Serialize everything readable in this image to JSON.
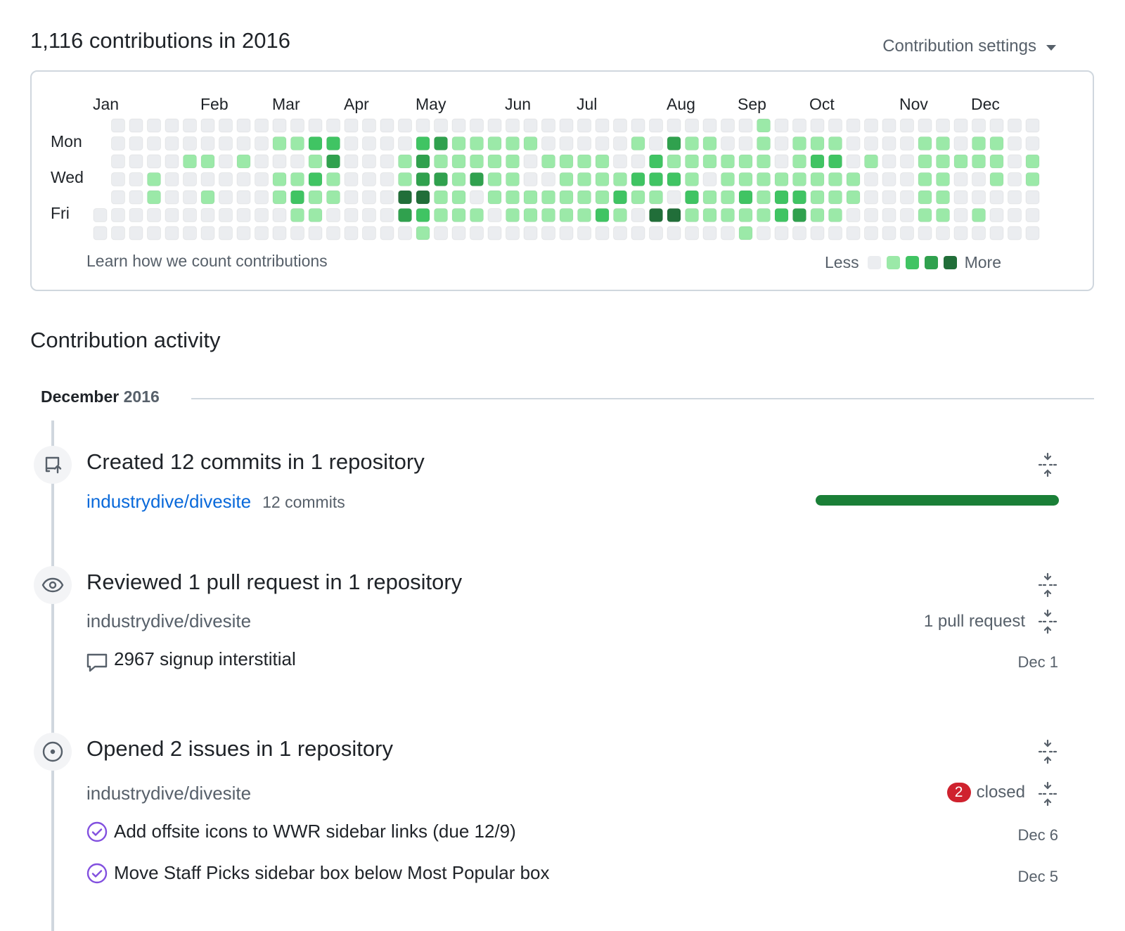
{
  "header": {
    "contributions_title": "1,116 contributions in 2016",
    "settings_label": "Contribution settings"
  },
  "calendar": {
    "months": [
      "Jan",
      "Feb",
      "Mar",
      "Apr",
      "May",
      "Jun",
      "Jul",
      "Aug",
      "Sep",
      "Oct",
      "Nov",
      "Dec"
    ],
    "days": [
      "Mon",
      "Wed",
      "Fri"
    ],
    "learn_link": "Learn how we count contributions",
    "legend_less": "Less",
    "legend_more": "More",
    "levels": [
      "#ebedf0",
      "#9be9a8",
      "#40c463",
      "#30a14e",
      "#216e39"
    ],
    "weeks": [
      [
        -1,
        -1,
        -1,
        -1,
        -1,
        0,
        0
      ],
      [
        0,
        0,
        0,
        0,
        0,
        0,
        0
      ],
      [
        0,
        0,
        0,
        0,
        0,
        0,
        0
      ],
      [
        0,
        0,
        0,
        1,
        1,
        0,
        0
      ],
      [
        0,
        0,
        0,
        0,
        0,
        0,
        0
      ],
      [
        0,
        0,
        1,
        0,
        0,
        0,
        0
      ],
      [
        0,
        0,
        1,
        0,
        1,
        0,
        0
      ],
      [
        0,
        0,
        0,
        0,
        0,
        0,
        0
      ],
      [
        0,
        0,
        1,
        0,
        0,
        0,
        0
      ],
      [
        0,
        0,
        0,
        0,
        0,
        0,
        0
      ],
      [
        0,
        1,
        0,
        1,
        1,
        0,
        0
      ],
      [
        0,
        1,
        0,
        1,
        2,
        1,
        0
      ],
      [
        0,
        2,
        1,
        2,
        1,
        1,
        0
      ],
      [
        0,
        2,
        3,
        1,
        1,
        0,
        0
      ],
      [
        0,
        0,
        0,
        0,
        0,
        0,
        0
      ],
      [
        0,
        0,
        0,
        0,
        0,
        0,
        0
      ],
      [
        0,
        0,
        0,
        0,
        0,
        0,
        0
      ],
      [
        0,
        0,
        1,
        1,
        4,
        3,
        0
      ],
      [
        0,
        2,
        3,
        3,
        4,
        2,
        1
      ],
      [
        0,
        3,
        1,
        3,
        1,
        1,
        0
      ],
      [
        0,
        1,
        1,
        1,
        1,
        1,
        0
      ],
      [
        0,
        1,
        1,
        3,
        0,
        1,
        0
      ],
      [
        0,
        1,
        1,
        1,
        1,
        0,
        0
      ],
      [
        0,
        1,
        1,
        1,
        1,
        1,
        0
      ],
      [
        0,
        1,
        0,
        0,
        1,
        1,
        0
      ],
      [
        0,
        0,
        1,
        0,
        1,
        1,
        0
      ],
      [
        0,
        0,
        1,
        1,
        1,
        1,
        0
      ],
      [
        0,
        0,
        1,
        1,
        1,
        1,
        0
      ],
      [
        0,
        0,
        1,
        1,
        1,
        2,
        0
      ],
      [
        0,
        0,
        0,
        1,
        2,
        1,
        0
      ],
      [
        0,
        1,
        0,
        2,
        1,
        0,
        0
      ],
      [
        0,
        0,
        2,
        2,
        1,
        4,
        0
      ],
      [
        0,
        3,
        1,
        2,
        0,
        4,
        0
      ],
      [
        0,
        1,
        1,
        1,
        2,
        1,
        0
      ],
      [
        0,
        1,
        1,
        0,
        1,
        1,
        0
      ],
      [
        0,
        0,
        1,
        1,
        1,
        1,
        0
      ],
      [
        0,
        0,
        1,
        1,
        2,
        1,
        1
      ],
      [
        1,
        1,
        1,
        1,
        1,
        1,
        0
      ],
      [
        0,
        0,
        0,
        1,
        2,
        2,
        0
      ],
      [
        0,
        1,
        1,
        1,
        2,
        3,
        0
      ],
      [
        0,
        1,
        2,
        1,
        1,
        1,
        0
      ],
      [
        0,
        1,
        2,
        1,
        1,
        1,
        0
      ],
      [
        0,
        0,
        0,
        1,
        1,
        0,
        0
      ],
      [
        0,
        0,
        1,
        0,
        0,
        0,
        0
      ],
      [
        0,
        0,
        0,
        0,
        0,
        0,
        0
      ],
      [
        0,
        0,
        0,
        0,
        0,
        0,
        0
      ],
      [
        0,
        1,
        1,
        1,
        1,
        1,
        0
      ],
      [
        0,
        1,
        1,
        1,
        1,
        1,
        0
      ],
      [
        0,
        0,
        1,
        0,
        0,
        0,
        0
      ],
      [
        0,
        1,
        1,
        0,
        0,
        1,
        0
      ],
      [
        0,
        1,
        1,
        1,
        0,
        0,
        0
      ],
      [
        0,
        0,
        0,
        0,
        0,
        0,
        0
      ],
      [
        0,
        0,
        1,
        1,
        0,
        0,
        0
      ]
    ]
  },
  "activity": {
    "title": "Contribution activity",
    "month": "December",
    "year": "2016",
    "commits": {
      "title": "Created 12 commits in 1 repository",
      "repo": "industrydive/divesite",
      "count": "12 commits",
      "progress": 1.0
    },
    "reviews": {
      "title": "Reviewed 1 pull request in 1 repository",
      "repo": "industrydive/divesite",
      "count": "1 pull request",
      "items": [
        {
          "text": "2967 signup interstitial",
          "date": "Dec 1"
        }
      ]
    },
    "issues": {
      "title": "Opened 2 issues in 1 repository",
      "repo": "industrydive/divesite",
      "closed_count": "2",
      "closed_label": "closed",
      "items": [
        {
          "text": "Add offsite icons to WWR sidebar links (due 12/9)",
          "date": "Dec 6"
        },
        {
          "text": "Move Staff Picks sidebar box below Most Popular box",
          "date": "Dec 5"
        }
      ]
    }
  },
  "colors": {
    "link": "#0969da",
    "muted": "#57606a",
    "progress": "#1a7f37",
    "closed_badge": "#cf222e",
    "issue_closed": "#8250df"
  }
}
